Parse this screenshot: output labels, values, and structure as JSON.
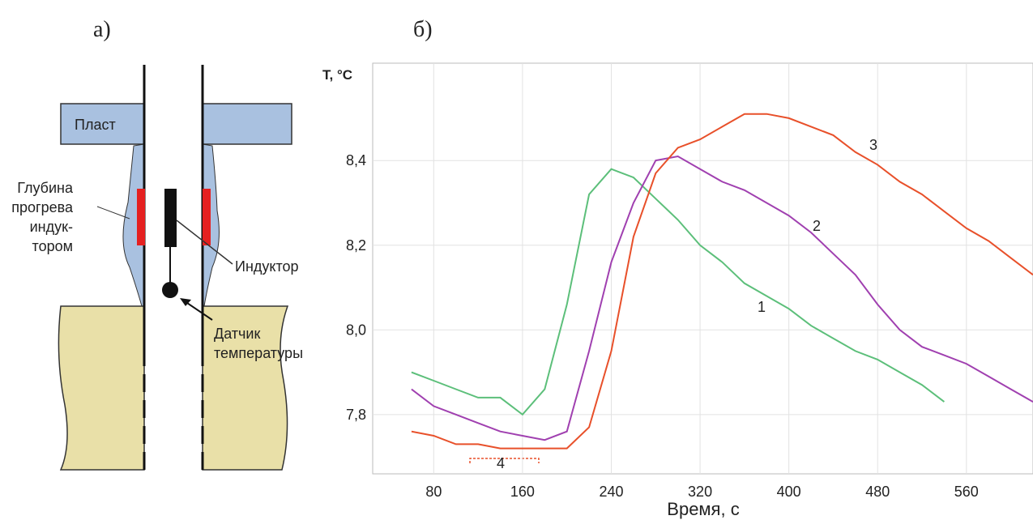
{
  "panels": {
    "a": "а)",
    "b": "б)"
  },
  "diagram": {
    "layer": "Пласт",
    "heating_depth": [
      "Глубина",
      "прогрева",
      "индук-",
      "тором"
    ],
    "inductor": "Индуктор",
    "sensor": [
      "Датчик",
      "температуры"
    ]
  },
  "chart_data": {
    "type": "line",
    "y_label": "T, °C",
    "x_label": "Время, с",
    "x": [
      60,
      80,
      100,
      120,
      140,
      160,
      180,
      200,
      220,
      240,
      260,
      280,
      300,
      320,
      340,
      360,
      380,
      400,
      420,
      440,
      460,
      480,
      500,
      520,
      540,
      560,
      580,
      600,
      620
    ],
    "series": [
      {
        "name": "1",
        "color": "#5cbf7a",
        "values": [
          7.9,
          7.88,
          7.86,
          7.84,
          7.84,
          7.8,
          7.86,
          8.06,
          8.32,
          8.38,
          8.36,
          8.31,
          8.26,
          8.2,
          8.16,
          8.11,
          8.08,
          8.05,
          8.01,
          7.98,
          7.95,
          7.93,
          7.9,
          7.87,
          7.83,
          null,
          null,
          null,
          null
        ]
      },
      {
        "name": "2",
        "color": "#a040b0",
        "values": [
          7.86,
          7.82,
          7.8,
          7.78,
          7.76,
          7.75,
          7.74,
          7.76,
          7.95,
          8.16,
          8.3,
          8.4,
          8.41,
          8.38,
          8.35,
          8.33,
          8.3,
          8.27,
          8.23,
          8.18,
          8.13,
          8.06,
          8.0,
          7.96,
          7.94,
          7.92,
          7.89,
          7.86,
          7.83
        ]
      },
      {
        "name": "3",
        "color": "#e8502a",
        "values": [
          7.76,
          7.75,
          7.73,
          7.73,
          7.72,
          7.72,
          7.72,
          7.72,
          7.77,
          7.95,
          8.22,
          8.37,
          8.43,
          8.45,
          8.48,
          8.51,
          8.51,
          8.5,
          8.48,
          8.46,
          8.42,
          8.39,
          8.35,
          8.32,
          8.28,
          8.24,
          8.21,
          8.17,
          8.13
        ]
      }
    ],
    "xlim": [
      25,
      620
    ],
    "ylim": [
      7.66,
      8.63
    ],
    "xticks": [
      80,
      160,
      240,
      320,
      400,
      480,
      560
    ],
    "yticks": [
      {
        "value": 7.8,
        "label": "7,8"
      },
      {
        "value": 8.0,
        "label": "8,0"
      },
      {
        "value": 8.2,
        "label": "8,2"
      },
      {
        "value": 8.4,
        "label": "8,4"
      }
    ],
    "grid": true,
    "annotations": [
      "1",
      "2",
      "3",
      "4"
    ]
  }
}
